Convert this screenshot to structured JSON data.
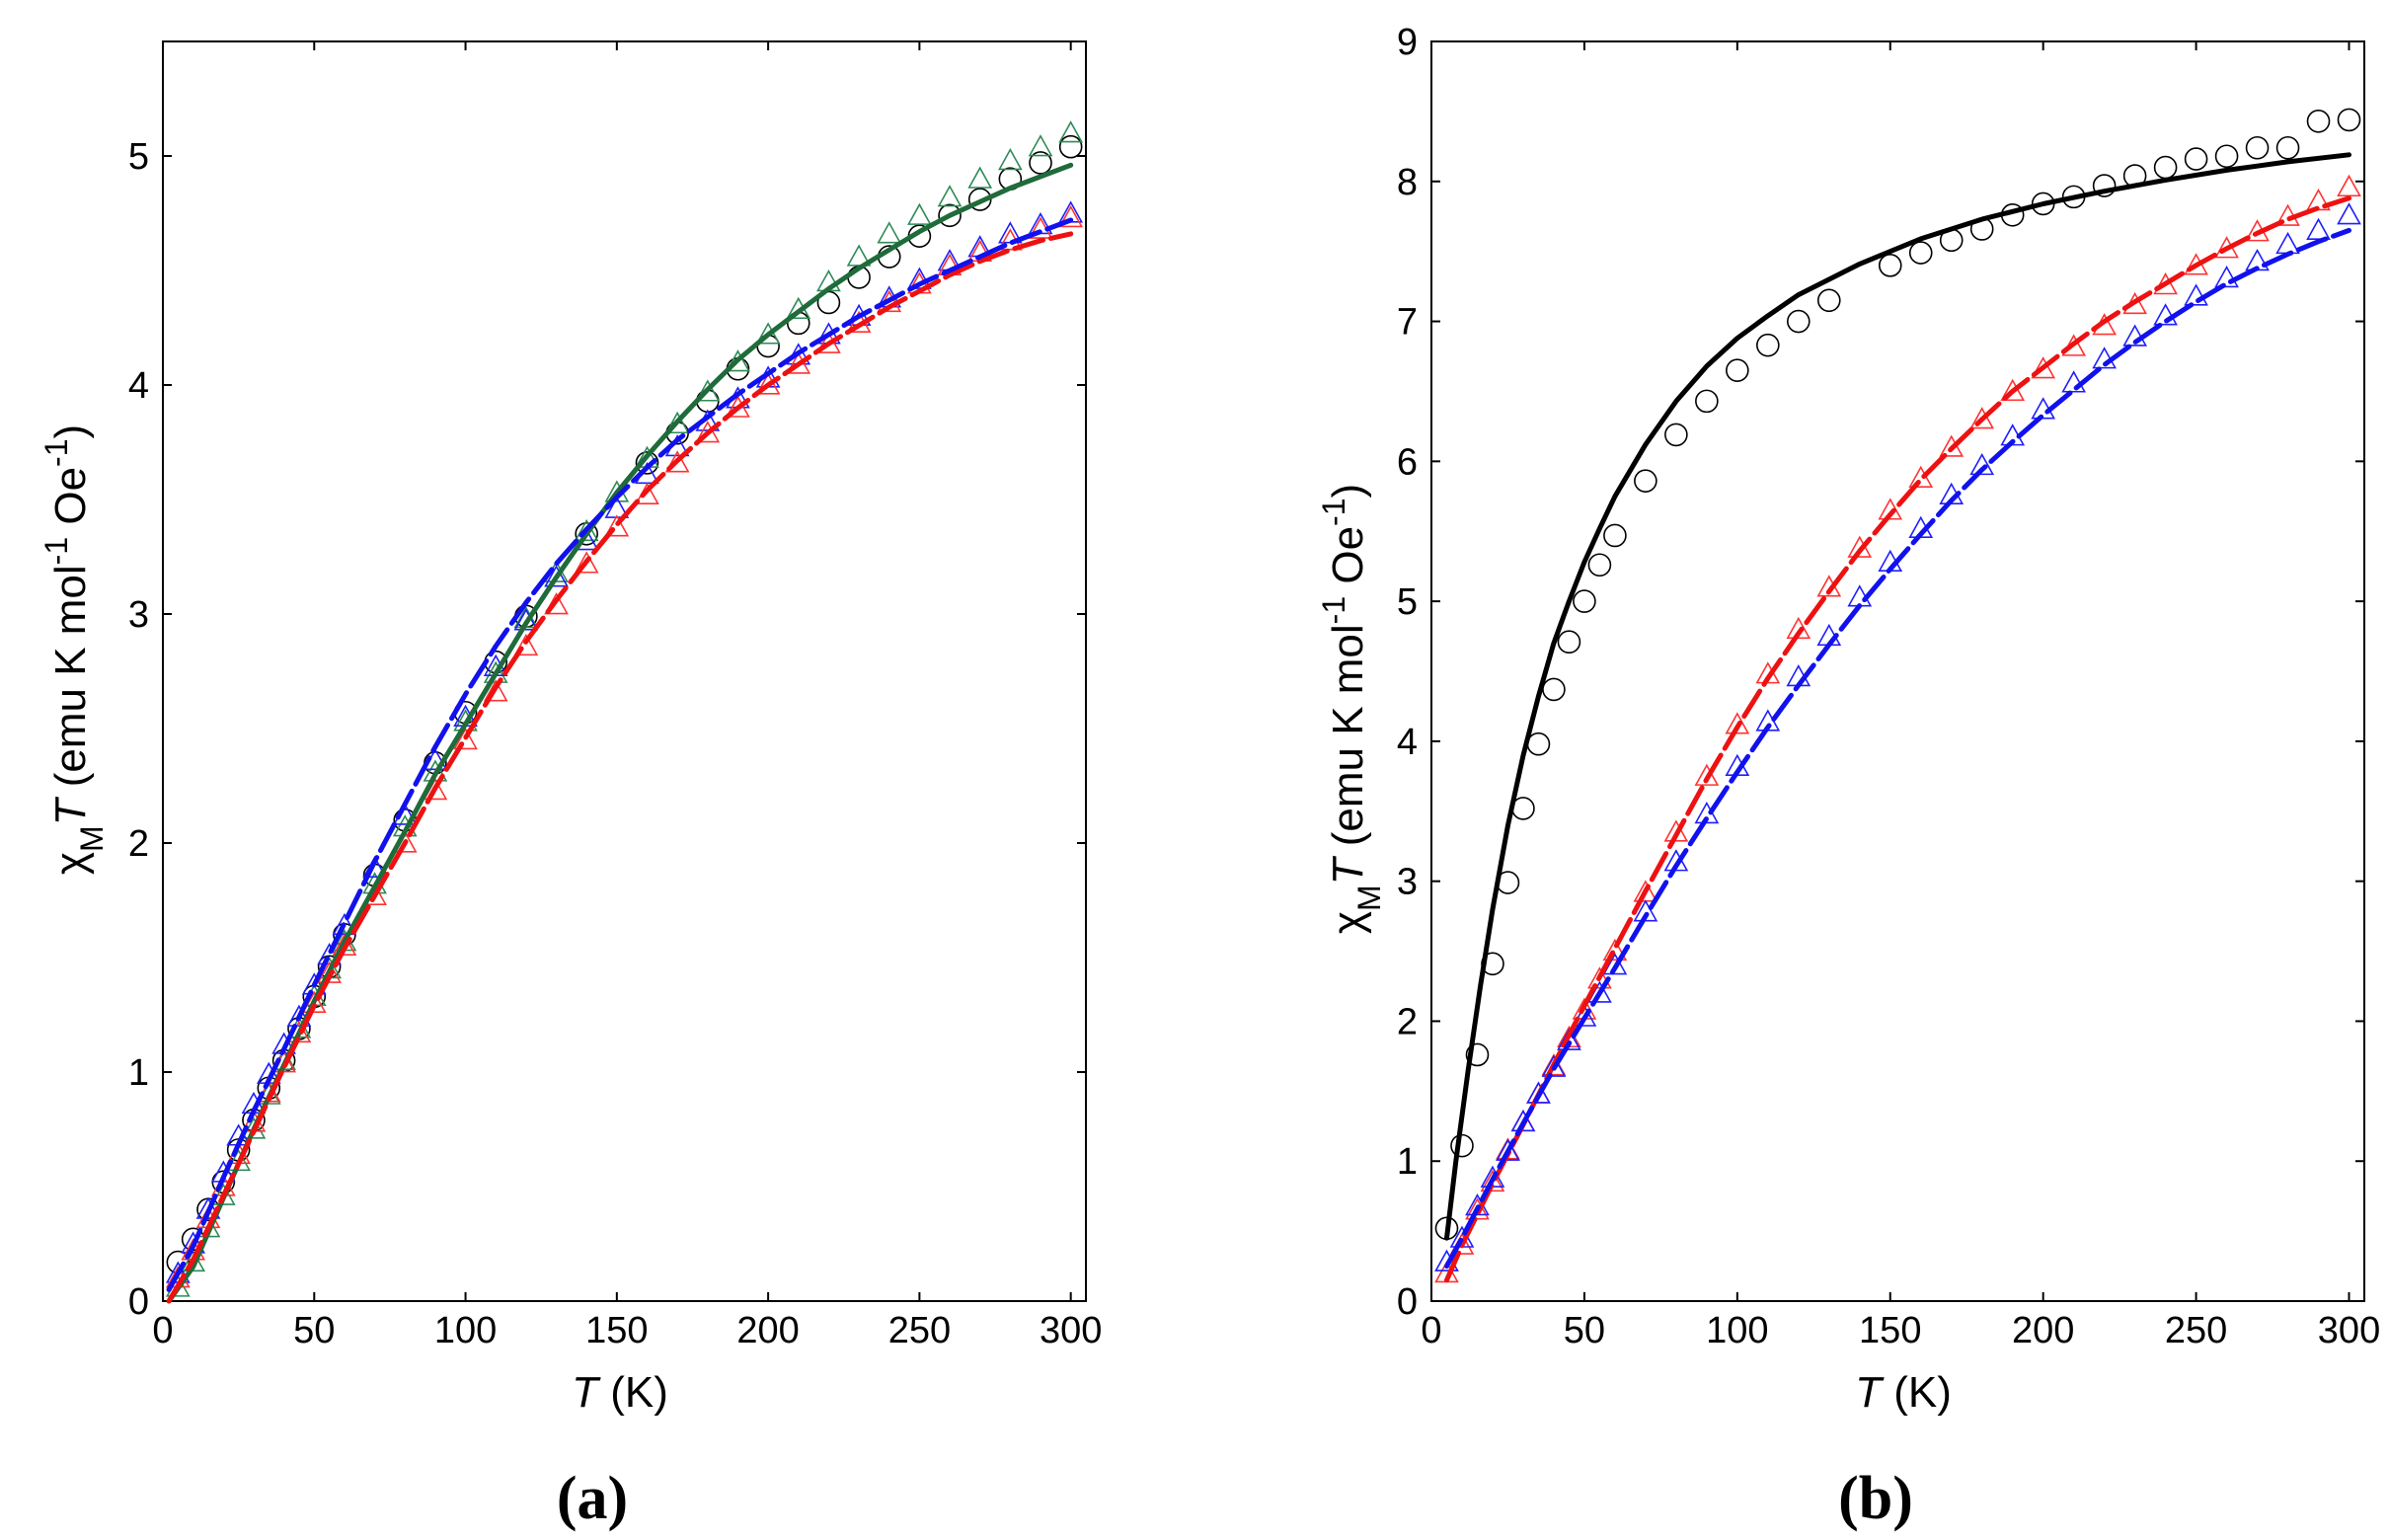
{
  "chart_data": [
    {
      "type": "line",
      "panel_label": "(a)",
      "title": "",
      "xlabel": {
        "symbol": "T",
        "unit": " (K)"
      },
      "ylabel": {
        "symbol": "χ",
        "sub": "M",
        "italic": "T",
        "unit_open": " (emu K mol",
        "sup": "-1",
        "unit_close": " Oe",
        "sup2": "-1",
        "close": ")"
      },
      "xlim": [
        0,
        305
      ],
      "ylim": [
        0,
        5.5
      ],
      "xticks": [
        0,
        50,
        100,
        150,
        200,
        250,
        300
      ],
      "yticks": [
        0,
        1,
        2,
        3,
        4,
        5
      ],
      "grid": false,
      "series": [
        {
          "name": "black circles",
          "kind": "markers",
          "marker": "circle",
          "color": "#000000",
          "x": [
            5,
            10,
            15,
            20,
            25,
            30,
            35,
            40,
            45,
            50,
            55,
            60,
            70,
            80,
            90,
            100,
            110,
            120,
            140,
            160,
            170,
            180,
            190,
            200,
            210,
            220,
            230,
            240,
            250,
            260,
            270,
            280,
            290,
            300
          ],
          "y": [
            0.17,
            0.27,
            0.4,
            0.52,
            0.66,
            0.79,
            0.93,
            1.05,
            1.19,
            1.33,
            1.46,
            1.6,
            1.86,
            2.1,
            2.35,
            2.57,
            2.79,
            2.99,
            3.35,
            3.66,
            3.79,
            3.93,
            4.07,
            4.17,
            4.27,
            4.36,
            4.47,
            4.56,
            4.65,
            4.74,
            4.81,
            4.9,
            4.97,
            5.04
          ]
        },
        {
          "name": "green triangles",
          "kind": "markers",
          "marker": "triangle",
          "color": "#2e8b57",
          "x": [
            5,
            10,
            15,
            20,
            25,
            30,
            35,
            40,
            45,
            50,
            55,
            60,
            70,
            80,
            90,
            100,
            110,
            120,
            130,
            140,
            150,
            160,
            170,
            180,
            190,
            200,
            210,
            220,
            230,
            240,
            250,
            260,
            270,
            280,
            290,
            300
          ],
          "y": [
            0.06,
            0.17,
            0.32,
            0.46,
            0.61,
            0.75,
            0.9,
            1.05,
            1.19,
            1.33,
            1.45,
            1.57,
            1.82,
            2.07,
            2.31,
            2.53,
            2.74,
            2.98,
            3.18,
            3.36,
            3.53,
            3.68,
            3.83,
            3.97,
            4.1,
            4.22,
            4.33,
            4.45,
            4.56,
            4.66,
            4.74,
            4.82,
            4.9,
            4.98,
            5.04,
            5.1
          ]
        },
        {
          "name": "blue triangles",
          "kind": "markers",
          "marker": "triangle",
          "color": "#1f1fff",
          "x": [
            5,
            10,
            15,
            20,
            25,
            30,
            35,
            40,
            45,
            50,
            55,
            60,
            70,
            80,
            90,
            100,
            110,
            120,
            130,
            140,
            150,
            160,
            170,
            180,
            190,
            200,
            210,
            220,
            230,
            240,
            250,
            260,
            270,
            280,
            290,
            300
          ],
          "y": [
            0.12,
            0.25,
            0.4,
            0.56,
            0.72,
            0.86,
            0.99,
            1.12,
            1.24,
            1.38,
            1.51,
            1.64,
            1.89,
            2.12,
            2.36,
            2.55,
            2.77,
            2.97,
            3.16,
            3.32,
            3.46,
            3.61,
            3.73,
            3.84,
            3.94,
            4.03,
            4.13,
            4.22,
            4.3,
            4.38,
            4.46,
            4.54,
            4.6,
            4.66,
            4.7,
            4.75
          ]
        },
        {
          "name": "red triangles",
          "kind": "markers",
          "marker": "triangle",
          "color": "#ff3333",
          "x": [
            5,
            10,
            15,
            20,
            25,
            30,
            35,
            40,
            45,
            50,
            55,
            60,
            70,
            80,
            90,
            100,
            110,
            120,
            130,
            140,
            150,
            160,
            170,
            180,
            190,
            200,
            210,
            220,
            230,
            240,
            250,
            260,
            270,
            280,
            290,
            300
          ],
          "y": [
            0.1,
            0.22,
            0.36,
            0.5,
            0.64,
            0.78,
            0.91,
            1.04,
            1.17,
            1.3,
            1.43,
            1.55,
            1.77,
            2.0,
            2.23,
            2.45,
            2.66,
            2.86,
            3.04,
            3.22,
            3.38,
            3.52,
            3.66,
            3.79,
            3.9,
            4.0,
            4.09,
            4.18,
            4.27,
            4.36,
            4.44,
            4.52,
            4.58,
            4.63,
            4.68,
            4.73
          ]
        },
        {
          "name": "green fit",
          "kind": "line",
          "color": "#1f6b3a",
          "dash": "",
          "x": [
            2,
            10,
            20,
            30,
            40,
            50,
            60,
            70,
            80,
            90,
            100,
            110,
            120,
            130,
            140,
            150,
            160,
            170,
            180,
            190,
            200,
            210,
            220,
            230,
            240,
            250,
            260,
            270,
            280,
            290,
            300
          ],
          "y": [
            0.0,
            0.15,
            0.45,
            0.75,
            1.03,
            1.31,
            1.57,
            1.81,
            2.05,
            2.3,
            2.52,
            2.74,
            2.96,
            3.16,
            3.35,
            3.53,
            3.69,
            3.84,
            3.98,
            4.11,
            4.22,
            4.32,
            4.42,
            4.51,
            4.59,
            4.67,
            4.74,
            4.8,
            4.86,
            4.91,
            4.96
          ]
        },
        {
          "name": "red fit",
          "kind": "line",
          "color": "#ee1111",
          "dash": "30 8",
          "x": [
            2,
            10,
            20,
            30,
            40,
            50,
            60,
            70,
            80,
            90,
            100,
            110,
            120,
            130,
            140,
            150,
            160,
            170,
            180,
            190,
            200,
            210,
            220,
            230,
            240,
            250,
            260,
            270,
            280,
            290,
            300
          ],
          "y": [
            0.0,
            0.18,
            0.46,
            0.74,
            1.02,
            1.29,
            1.54,
            1.77,
            2.0,
            2.24,
            2.46,
            2.68,
            2.88,
            3.06,
            3.23,
            3.39,
            3.54,
            3.67,
            3.79,
            3.9,
            4.0,
            4.09,
            4.18,
            4.26,
            4.34,
            4.41,
            4.48,
            4.54,
            4.59,
            4.63,
            4.66
          ]
        },
        {
          "name": "blue fit",
          "kind": "line",
          "color": "#1111ee",
          "dash": "30 8",
          "x": [
            2,
            10,
            20,
            30,
            40,
            50,
            60,
            70,
            80,
            90,
            100,
            110,
            120,
            130,
            140,
            150,
            160,
            170,
            180,
            190,
            200,
            210,
            220,
            230,
            240,
            250,
            260,
            270,
            280,
            290,
            300
          ],
          "y": [
            0.05,
            0.24,
            0.54,
            0.83,
            1.1,
            1.38,
            1.65,
            1.92,
            2.17,
            2.42,
            2.65,
            2.86,
            3.05,
            3.22,
            3.37,
            3.51,
            3.64,
            3.76,
            3.86,
            3.96,
            4.05,
            4.14,
            4.22,
            4.3,
            4.37,
            4.44,
            4.5,
            4.56,
            4.62,
            4.67,
            4.72
          ]
        }
      ]
    },
    {
      "type": "line",
      "panel_label": "(b)",
      "title": "",
      "xlabel": {
        "symbol": "T",
        "unit": " (K)"
      },
      "ylabel": {
        "symbol": "χ",
        "sub": "M",
        "italic": "T",
        "unit_open": " (emu K mol",
        "sup": "-1",
        "unit_close": " Oe",
        "sup2": "-1",
        "close": ")"
      },
      "xlim": [
        0,
        305
      ],
      "ylim": [
        0,
        9
      ],
      "xticks": [
        0,
        50,
        100,
        150,
        200,
        250,
        300
      ],
      "yticks": [
        0,
        1,
        2,
        3,
        4,
        5,
        6,
        7,
        8,
        9
      ],
      "grid": false,
      "series": [
        {
          "name": "black circles",
          "kind": "markers",
          "marker": "circle",
          "color": "#000000",
          "x": [
            5,
            10,
            15,
            20,
            25,
            30,
            35,
            40,
            45,
            50,
            55,
            60,
            70,
            80,
            90,
            100,
            110,
            120,
            130,
            150,
            160,
            170,
            180,
            190,
            200,
            210,
            220,
            230,
            240,
            250,
            260,
            270,
            280,
            290,
            300
          ],
          "y": [
            0.52,
            1.11,
            1.76,
            2.41,
            2.99,
            3.52,
            3.98,
            4.37,
            4.71,
            5.0,
            5.26,
            5.47,
            5.86,
            6.19,
            6.43,
            6.65,
            6.83,
            7.0,
            7.15,
            7.4,
            7.49,
            7.58,
            7.66,
            7.76,
            7.84,
            7.89,
            7.97,
            8.04,
            8.1,
            8.16,
            8.18,
            8.24,
            8.24,
            8.43,
            8.44
          ]
        },
        {
          "name": "red triangles",
          "kind": "markers",
          "marker": "triangle",
          "color": "#ff3333",
          "x": [
            5,
            10,
            15,
            20,
            25,
            30,
            35,
            40,
            45,
            50,
            55,
            60,
            70,
            80,
            90,
            100,
            110,
            120,
            130,
            140,
            150,
            160,
            170,
            180,
            190,
            200,
            210,
            220,
            230,
            240,
            250,
            260,
            270,
            280,
            290,
            300
          ],
          "y": [
            0.2,
            0.4,
            0.65,
            0.85,
            1.08,
            1.28,
            1.48,
            1.68,
            1.88,
            2.08,
            2.3,
            2.5,
            2.92,
            3.35,
            3.75,
            4.12,
            4.48,
            4.8,
            5.1,
            5.38,
            5.65,
            5.88,
            6.1,
            6.3,
            6.5,
            6.66,
            6.82,
            6.97,
            7.12,
            7.26,
            7.4,
            7.52,
            7.64,
            7.75,
            7.86,
            7.96
          ]
        },
        {
          "name": "blue triangles",
          "kind": "markers",
          "marker": "triangle",
          "color": "#1f1fff",
          "x": [
            5,
            10,
            15,
            20,
            25,
            30,
            35,
            40,
            45,
            50,
            55,
            60,
            70,
            80,
            90,
            100,
            110,
            120,
            130,
            140,
            150,
            160,
            170,
            180,
            190,
            200,
            210,
            220,
            230,
            240,
            250,
            260,
            270,
            280,
            290,
            300
          ],
          "y": [
            0.28,
            0.45,
            0.68,
            0.88,
            1.07,
            1.28,
            1.48,
            1.67,
            1.86,
            2.03,
            2.2,
            2.4,
            2.78,
            3.14,
            3.48,
            3.82,
            4.14,
            4.46,
            4.75,
            5.03,
            5.28,
            5.52,
            5.76,
            5.97,
            6.18,
            6.37,
            6.56,
            6.73,
            6.89,
            7.04,
            7.18,
            7.31,
            7.43,
            7.55,
            7.65,
            7.76
          ]
        },
        {
          "name": "black fit",
          "kind": "line",
          "color": "#000000",
          "dash": "",
          "x": [
            5,
            8,
            12,
            16,
            20,
            25,
            30,
            35,
            40,
            45,
            50,
            55,
            60,
            70,
            80,
            90,
            100,
            110,
            120,
            140,
            160,
            180,
            200,
            220,
            240,
            260,
            280,
            300
          ],
          "y": [
            0.45,
            1.0,
            1.65,
            2.25,
            2.8,
            3.4,
            3.9,
            4.32,
            4.7,
            5.0,
            5.28,
            5.52,
            5.75,
            6.12,
            6.43,
            6.68,
            6.88,
            7.04,
            7.19,
            7.41,
            7.59,
            7.73,
            7.84,
            7.93,
            8.01,
            8.08,
            8.14,
            8.19
          ]
        },
        {
          "name": "red fit",
          "kind": "line",
          "color": "#ee1111",
          "dash": "30 8",
          "x": [
            5,
            10,
            20,
            30,
            40,
            50,
            60,
            70,
            80,
            90,
            100,
            110,
            120,
            130,
            140,
            150,
            160,
            170,
            180,
            190,
            200,
            210,
            220,
            230,
            240,
            250,
            260,
            270,
            280,
            290,
            300
          ],
          "y": [
            0.15,
            0.4,
            0.84,
            1.26,
            1.69,
            2.11,
            2.52,
            2.93,
            3.33,
            3.73,
            4.1,
            4.45,
            4.77,
            5.07,
            5.36,
            5.62,
            5.87,
            6.09,
            6.3,
            6.5,
            6.67,
            6.84,
            7.0,
            7.14,
            7.27,
            7.4,
            7.52,
            7.63,
            7.73,
            7.81,
            7.88
          ]
        },
        {
          "name": "blue fit",
          "kind": "line",
          "color": "#1111ee",
          "dash": "30 8",
          "x": [
            5,
            10,
            20,
            30,
            40,
            50,
            60,
            70,
            80,
            90,
            100,
            110,
            120,
            130,
            140,
            150,
            160,
            170,
            180,
            190,
            200,
            210,
            220,
            230,
            240,
            250,
            260,
            270,
            280,
            290,
            300
          ],
          "y": [
            0.25,
            0.45,
            0.87,
            1.27,
            1.66,
            2.02,
            2.38,
            2.75,
            3.11,
            3.45,
            3.78,
            4.1,
            4.4,
            4.69,
            4.97,
            5.23,
            5.48,
            5.72,
            5.94,
            6.14,
            6.33,
            6.51,
            6.69,
            6.85,
            7.0,
            7.14,
            7.27,
            7.38,
            7.48,
            7.57,
            7.65
          ]
        }
      ]
    }
  ]
}
